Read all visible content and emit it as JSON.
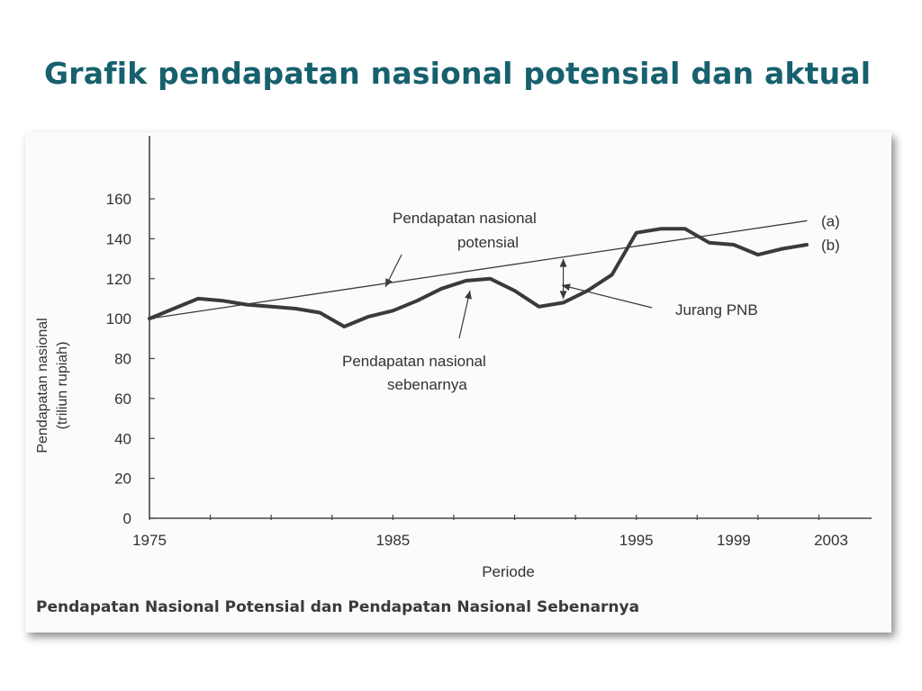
{
  "slide": {
    "title": "Grafik pendapatan nasional potensial dan aktual",
    "caption": "Pendapatan Nasional Potensial dan Pendapatan Nasional Sebenarnya"
  },
  "chart_data": {
    "type": "line",
    "title": "",
    "xlabel": "Periode",
    "ylabel": "Pendapatan nasional",
    "ylabel_unit": "(triliun rupiah)",
    "xlim": [
      1975,
      2003
    ],
    "ylim": [
      0,
      160
    ],
    "x_ticks": [
      1975,
      1985,
      1995,
      1999,
      2003
    ],
    "y_ticks": [
      0,
      20,
      40,
      60,
      80,
      100,
      120,
      140,
      160
    ],
    "grid": false,
    "series": [
      {
        "name": "(a)",
        "style": "thin",
        "points": [
          [
            1975,
            100
          ],
          [
            2002,
            149
          ]
        ]
      },
      {
        "name": "(b)",
        "style": "thick",
        "points": [
          [
            1975,
            100
          ],
          [
            1976,
            105
          ],
          [
            1977,
            110
          ],
          [
            1978,
            109
          ],
          [
            1979,
            107
          ],
          [
            1980,
            106
          ],
          [
            1981,
            105
          ],
          [
            1982,
            103
          ],
          [
            1983,
            96
          ],
          [
            1984,
            101
          ],
          [
            1985,
            104
          ],
          [
            1986,
            109
          ],
          [
            1987,
            115
          ],
          [
            1988,
            119
          ],
          [
            1989,
            120
          ],
          [
            1990,
            114
          ],
          [
            1991,
            106
          ],
          [
            1992,
            108
          ],
          [
            1993,
            114
          ],
          [
            1994,
            122
          ],
          [
            1995,
            143
          ],
          [
            1996,
            145
          ],
          [
            1997,
            145
          ],
          [
            1998,
            138
          ],
          [
            1999,
            137
          ],
          [
            2000,
            132
          ],
          [
            2001,
            135
          ],
          [
            2002,
            137
          ]
        ]
      }
    ],
    "annotations": {
      "potential_line1": "Pendapatan nasional",
      "potential_line2": "potensial",
      "actual_line1": "Pendapatan nasional",
      "actual_line2": "sebenarnya",
      "gap": "Jurang PNB",
      "gap_year": 1992
    }
  }
}
